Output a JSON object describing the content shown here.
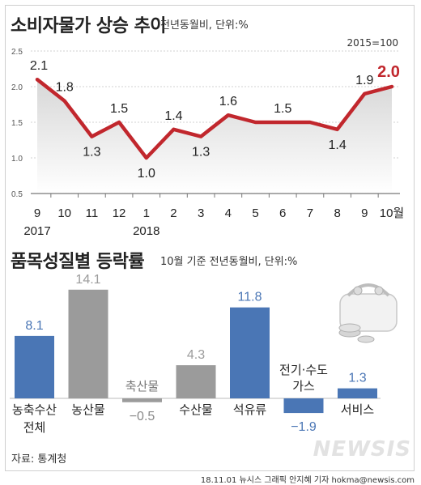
{
  "header": {
    "title": "소비자물가 상승 추이",
    "subtitle": "전년동월비, 단위:%",
    "base_note": "2015=100"
  },
  "section2": {
    "title": "품목성질별 등락률",
    "subtitle": "10월 기준 전년동월비, 단위:%"
  },
  "footer": {
    "source": "자료: 통계청",
    "credit": "18.11.01 뉴시스 그래픽 안지혜 기자 hokma@newsis.com",
    "logo": "NEWSIS"
  },
  "colors": {
    "line": "#c1272d",
    "positive_bar": "#4a76b5",
    "negative_bar": "#9b9b9b",
    "band": "#d7d7d7"
  },
  "chart_data": [
    {
      "type": "line",
      "title": "소비자물가 상승 추이",
      "categories": [
        "9",
        "10",
        "11",
        "12",
        "1",
        "2",
        "3",
        "4",
        "5",
        "6",
        "7",
        "8",
        "9",
        "10월"
      ],
      "year_labels": [
        {
          "index": 0,
          "label": "2017"
        },
        {
          "index": 4,
          "label": "2018"
        }
      ],
      "values": [
        2.1,
        1.8,
        1.3,
        1.5,
        1.0,
        1.4,
        1.3,
        1.6,
        1.5,
        1.5,
        1.5,
        1.4,
        1.9,
        2.0
      ],
      "value_labels": [
        "2.1",
        "1.8",
        "1.3",
        "1.5",
        "1.0",
        "1.4",
        "1.3",
        "1.6",
        "",
        "1.5",
        "",
        "1.4",
        "1.9",
        "2.0"
      ],
      "yticks": [
        0.5,
        1.0,
        1.5,
        2.0,
        2.5
      ],
      "ytick_labels": [
        "0.5",
        "1.0",
        "1.5",
        "2.0",
        "2.5"
      ],
      "ylim": [
        0.5,
        2.5
      ],
      "grid": true
    },
    {
      "type": "bar",
      "title": "품목성질별 등락률",
      "categories": [
        "농축수산 전체",
        "농산물",
        "축산물",
        "수산물",
        "석유류",
        "전기·수도 가스",
        "서비스"
      ],
      "category_lines": [
        [
          "농축수산",
          "전체"
        ],
        [
          "농산물"
        ],
        [
          "축산물"
        ],
        [
          "수산물"
        ],
        [
          "석유류"
        ],
        [
          "전기·수도",
          "가스"
        ],
        [
          "서비스"
        ]
      ],
      "values": [
        8.1,
        14.1,
        -0.5,
        4.3,
        11.8,
        -1.9,
        1.3
      ],
      "value_labels": [
        "8.1",
        "14.1",
        "−0.5",
        "4.3",
        "11.8",
        "−1.9",
        "1.3"
      ],
      "bar_colors": [
        "#4a76b5",
        "#9b9b9b",
        "#9b9b9b",
        "#9b9b9b",
        "#4a76b5",
        "#4a76b5",
        "#4a76b5"
      ]
    }
  ]
}
